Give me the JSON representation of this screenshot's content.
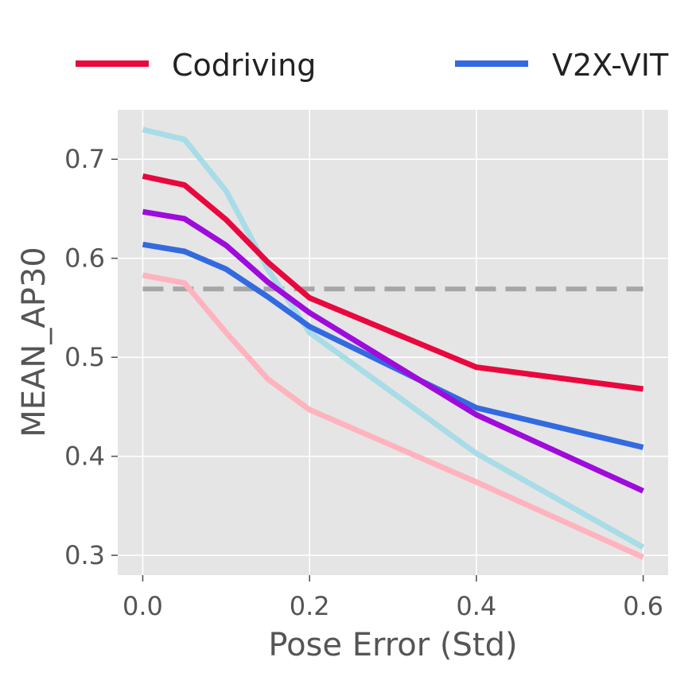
{
  "chart_data": {
    "type": "line",
    "xlabel": "Pose Error (Std)",
    "ylabel": "MEAN_AP30",
    "xlim": [
      -0.03,
      0.63
    ],
    "ylim": [
      0.28,
      0.75
    ],
    "xticks": [
      0.0,
      0.2,
      0.4,
      0.6
    ],
    "xtick_labels": [
      "0.0",
      "0.2",
      "0.4",
      "0.6"
    ],
    "yticks": [
      0.3,
      0.4,
      0.5,
      0.6,
      0.7
    ],
    "ytick_labels": [
      "0.3",
      "0.4",
      "0.5",
      "0.6",
      "0.7"
    ],
    "grid": true,
    "legend_position": "top",
    "legend": [
      {
        "label": "Codriving",
        "color": "#e8083e"
      },
      {
        "label": "V2X-VIT",
        "color": "#336ae0"
      }
    ],
    "series": [
      {
        "name": "Codriving",
        "color": "#e8083e",
        "in_legend": true,
        "x": [
          0.0,
          0.05,
          0.1,
          0.15,
          0.2,
          0.4,
          0.6
        ],
        "y": [
          0.683,
          0.674,
          0.639,
          0.596,
          0.56,
          0.49,
          0.468
        ]
      },
      {
        "name": "V2X-VIT",
        "color": "#336ae0",
        "in_legend": true,
        "x": [
          0.0,
          0.05,
          0.1,
          0.15,
          0.2,
          0.4,
          0.6
        ],
        "y": [
          0.614,
          0.607,
          0.589,
          0.561,
          0.531,
          0.449,
          0.409
        ]
      },
      {
        "name": "purple-series",
        "color": "#9e0bdb",
        "in_legend": false,
        "x": [
          0.0,
          0.05,
          0.1,
          0.15,
          0.2,
          0.4,
          0.6
        ],
        "y": [
          0.647,
          0.64,
          0.613,
          0.576,
          0.545,
          0.442,
          0.365
        ]
      },
      {
        "name": "light-blue-series",
        "color": "#a8dce6",
        "in_legend": false,
        "x": [
          0.0,
          0.05,
          0.1,
          0.15,
          0.2,
          0.4,
          0.6
        ],
        "y": [
          0.73,
          0.72,
          0.668,
          0.589,
          0.525,
          0.403,
          0.308
        ]
      },
      {
        "name": "pink-series",
        "color": "#ffb3be",
        "in_legend": false,
        "x": [
          0.0,
          0.05,
          0.1,
          0.15,
          0.2,
          0.4,
          0.6
        ],
        "y": [
          0.583,
          0.575,
          0.525,
          0.478,
          0.447,
          0.374,
          0.298
        ]
      }
    ],
    "reference_line": {
      "y": 0.569,
      "x_start": 0.0,
      "x_end": 0.6,
      "color": "#a6a6a6",
      "style": "dashed"
    }
  }
}
